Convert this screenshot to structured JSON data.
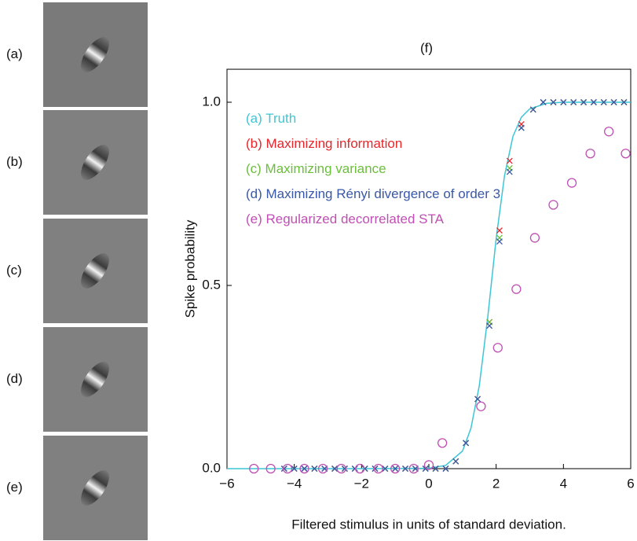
{
  "panels": {
    "labels": [
      "(a)",
      "(b)",
      "(c)",
      "(d)",
      "(e)"
    ]
  },
  "chart_data": {
    "type": "scatter",
    "title": "(f)",
    "x_label": "Filtered stimulus in units of standard deviation.",
    "y_label": "Spike probability",
    "xlim": [
      -6,
      6
    ],
    "ylim": [
      0,
      1.09
    ],
    "xticks": [
      {
        "value": -6,
        "label": "−6"
      },
      {
        "value": -4,
        "label": "−4"
      },
      {
        "value": -2,
        "label": "−2"
      },
      0,
      2,
      4,
      6
    ],
    "yticks": [
      {
        "value": 0,
        "label": "0.0"
      },
      {
        "value": 0.5,
        "label": "0.5"
      },
      {
        "value": 1,
        "label": "1.0"
      }
    ],
    "x": [
      -4.3,
      -4.0,
      -3.7,
      -3.4,
      -3.1,
      -2.8,
      -2.5,
      -2.2,
      -1.9,
      -1.6,
      -1.3,
      -1.0,
      -0.7,
      -0.4,
      -0.1,
      0.2,
      0.5,
      0.8,
      1.1,
      1.45,
      1.8,
      2.1,
      2.4,
      2.75,
      3.1,
      3.4,
      3.7,
      4.0,
      4.3,
      4.6,
      4.9,
      5.2,
      5.5,
      5.8
    ],
    "series": [
      {
        "name": "(a) Truth",
        "color": "#3cc6d6",
        "marker": "line",
        "x": [
          -6,
          -2,
          0,
          0.5,
          1.0,
          1.25,
          1.5,
          1.75,
          2.0,
          2.25,
          2.5,
          2.75,
          3.0,
          3.5,
          4.0,
          6
        ],
        "values": [
          0,
          0,
          0.001,
          0.009,
          0.048,
          0.11,
          0.227,
          0.413,
          0.628,
          0.8,
          0.907,
          0.959,
          0.982,
          0.997,
          1,
          1
        ]
      },
      {
        "name": "(b) Maximizing information",
        "color": "#e8262a",
        "marker": "cross",
        "values": [
          0,
          0,
          0,
          0,
          0,
          0,
          0,
          0,
          0,
          0,
          0,
          0,
          0,
          0,
          0,
          0,
          0,
          0.02,
          0.07,
          0.19,
          0.4,
          0.65,
          0.84,
          0.94,
          0.98,
          1,
          1,
          1,
          1,
          1,
          1,
          1,
          1,
          1
        ]
      },
      {
        "name": "(c) Maximizing variance",
        "color": "#6abf3a",
        "marker": "cross",
        "values": [
          0,
          0,
          0,
          0,
          0,
          0,
          0,
          0,
          0,
          0,
          0,
          0,
          0,
          0,
          0,
          0,
          0,
          0.02,
          0.07,
          0.19,
          0.4,
          0.63,
          0.82,
          0.93,
          0.98,
          1,
          1,
          1,
          1,
          1,
          1,
          1,
          1,
          1
        ]
      },
      {
        "name": "(d) Maximizing Rényi divergence of order  3",
        "color": "#3a58a8",
        "marker": "cross",
        "values": [
          0,
          0,
          0,
          0,
          0,
          0,
          0,
          0,
          0,
          0,
          0,
          0,
          0,
          0,
          0,
          0,
          0,
          0.02,
          0.07,
          0.19,
          0.39,
          0.62,
          0.81,
          0.93,
          0.98,
          1,
          1,
          1,
          1,
          1,
          1,
          1,
          1,
          1
        ]
      },
      {
        "name": "(e) Regularized decorrelated STA",
        "color": "#c04fb4",
        "marker": "circle",
        "x": [
          -5.2,
          -4.7,
          -4.2,
          -3.7,
          -3.15,
          -2.6,
          -2.05,
          -1.5,
          -1.0,
          -0.45,
          0,
          0.4,
          1.55,
          2.05,
          2.6,
          3.15,
          3.7,
          4.25,
          4.8,
          5.35,
          5.85
        ],
        "values": [
          0,
          0,
          0,
          0,
          0,
          0,
          0,
          0,
          0,
          0,
          0.01,
          0.07,
          0.17,
          0.33,
          0.49,
          0.63,
          0.72,
          0.78,
          0.86,
          0.92,
          0.86
        ]
      }
    ]
  }
}
